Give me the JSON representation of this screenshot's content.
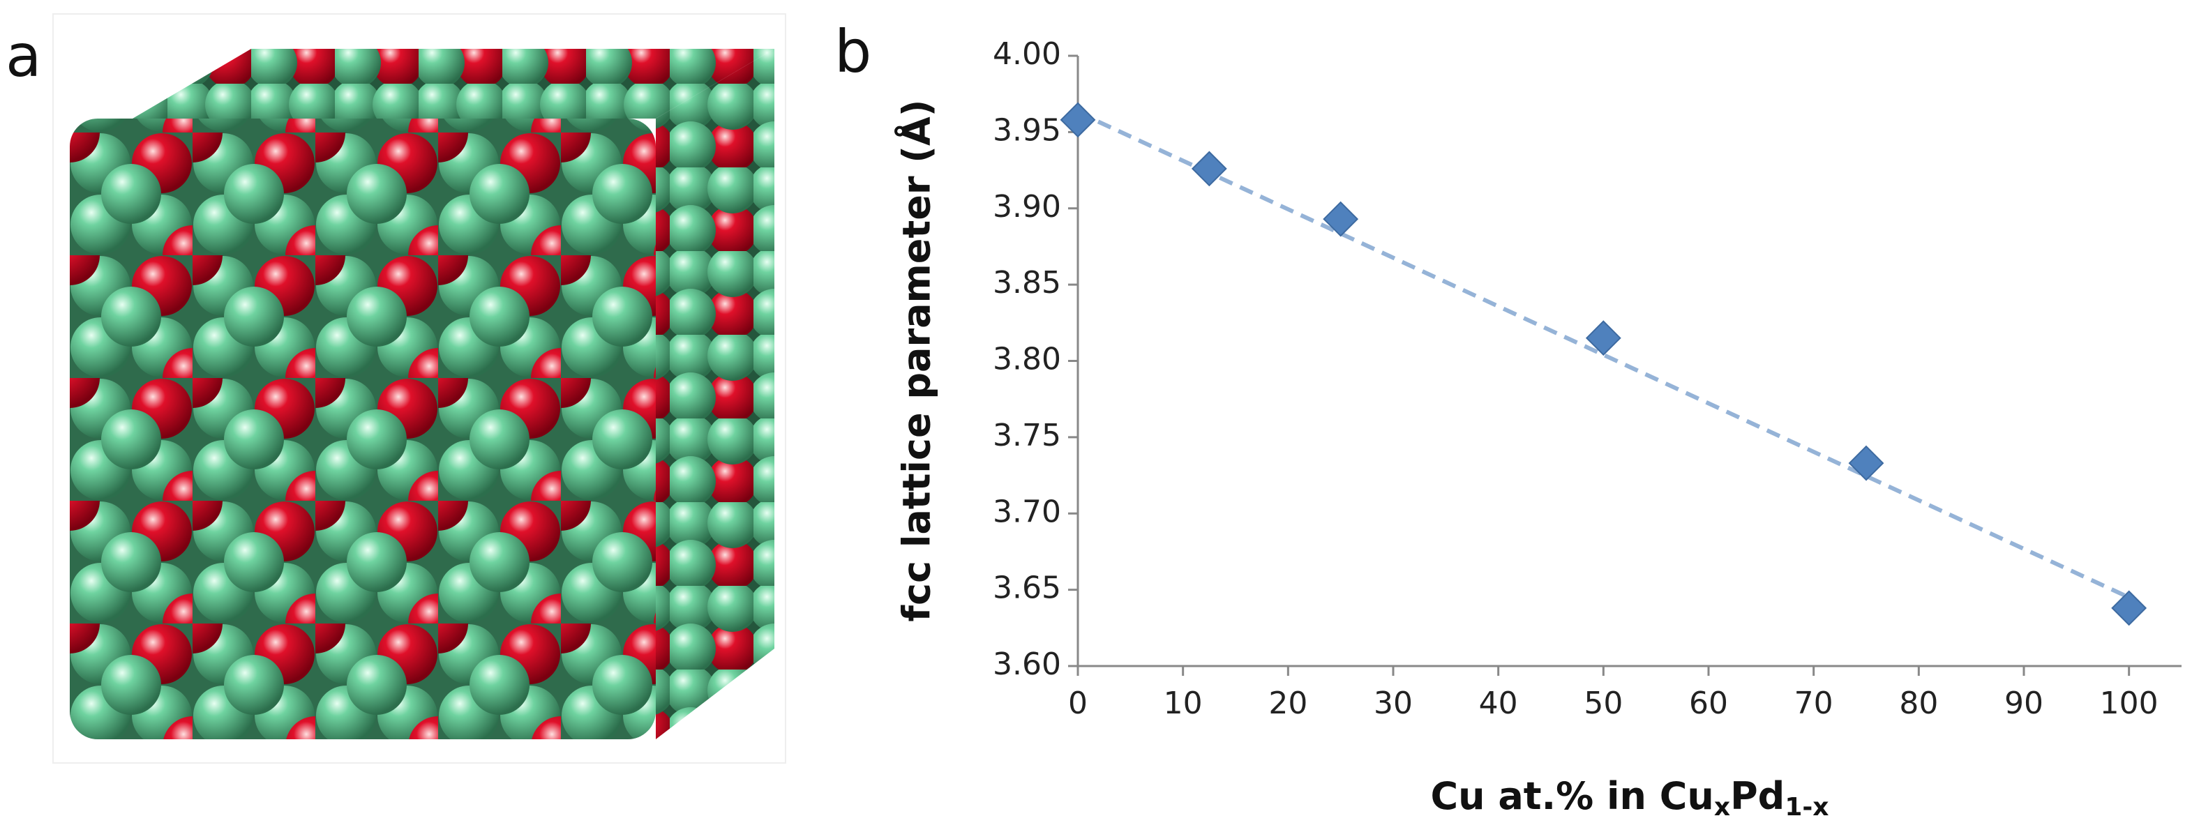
{
  "panel_a": {
    "label": "a"
  },
  "chart_data": {
    "type": "scatter",
    "panel_label": "b",
    "xlabel": [
      {
        "text": "Cu at.% in Cu"
      },
      {
        "text": "x",
        "sub": true
      },
      {
        "text": "Pd"
      },
      {
        "text": "1-x",
        "sub": true
      }
    ],
    "ylabel": "fcc lattice parameter (Å)",
    "x": [
      0,
      12.5,
      25,
      50,
      75,
      100
    ],
    "values": [
      3.958,
      3.926,
      3.893,
      3.815,
      3.733,
      3.638
    ],
    "color": "#4f81bd",
    "marker": "diamond",
    "trendline": {
      "x": [
        0,
        100
      ],
      "values": [
        3.963,
        3.645
      ],
      "color": "#95b3d7",
      "dashed": true
    },
    "xlim": [
      0,
      105
    ],
    "ylim": [
      3.6,
      4.0
    ],
    "xticks": [
      0,
      10,
      20,
      30,
      40,
      50,
      60,
      70,
      80,
      90,
      100
    ],
    "yticks": [
      {
        "value": 3.6,
        "label": "3.60"
      },
      3.65,
      {
        "value": 3.7,
        "label": "3.70"
      },
      3.75,
      {
        "value": 3.8,
        "label": "3.80"
      },
      3.85,
      {
        "value": 3.9,
        "label": "3.90"
      },
      3.95,
      {
        "value": 4.0,
        "label": "4.00"
      }
    ],
    "grid": false
  }
}
